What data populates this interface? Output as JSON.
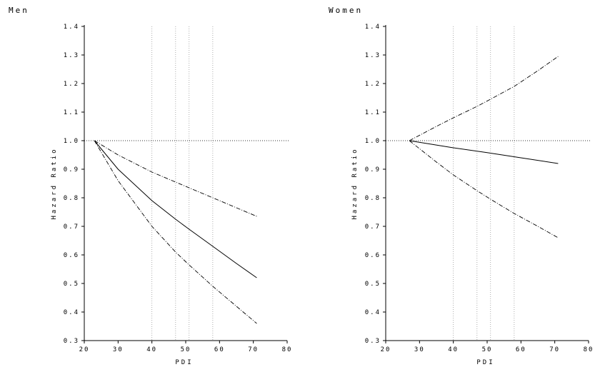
{
  "chart_data": [
    {
      "type": "line",
      "title": "Men",
      "xlabel": "PDI",
      "ylabel": "Hazard Ratio",
      "xlim": [
        20,
        80
      ],
      "ylim": [
        0.3,
        1.4
      ],
      "x_ticks": [
        20,
        30,
        40,
        50,
        60,
        70,
        80
      ],
      "y_ticks": [
        0.3,
        0.4,
        0.5,
        0.6,
        0.7,
        0.8,
        0.9,
        1.0,
        1.1,
        1.2,
        1.3,
        1.4
      ],
      "y_tick_labels": [
        "0.3",
        "0.4",
        "0.5",
        "0.6",
        "0.7",
        "0.8",
        "0.9",
        "1.0",
        "1.1",
        "1.2",
        "1.3",
        "1.4"
      ],
      "reference_line_y": 1.0,
      "vertical_gridlines_x": [
        40,
        47,
        51,
        58
      ],
      "series": [
        {
          "style": "solid",
          "x": [
            23,
            30,
            40,
            47,
            51,
            58,
            65,
            71
          ],
          "values": [
            1.0,
            0.9,
            0.79,
            0.725,
            0.69,
            0.63,
            0.57,
            0.52
          ]
        },
        {
          "style": "dashdot",
          "x": [
            23,
            30,
            40,
            47,
            51,
            58,
            65,
            71
          ],
          "values": [
            1.0,
            0.95,
            0.89,
            0.855,
            0.835,
            0.8,
            0.765,
            0.735
          ]
        },
        {
          "style": "dashdot",
          "x": [
            23,
            30,
            40,
            47,
            51,
            58,
            65,
            71
          ],
          "values": [
            1.0,
            0.86,
            0.7,
            0.61,
            0.565,
            0.49,
            0.42,
            0.36
          ]
        }
      ]
    },
    {
      "type": "line",
      "title": "Women",
      "xlabel": "PDI",
      "ylabel": "Hazard Ratio",
      "xlim": [
        20,
        80
      ],
      "ylim": [
        0.3,
        1.4
      ],
      "x_ticks": [
        20,
        30,
        40,
        50,
        60,
        70,
        80
      ],
      "y_ticks": [
        0.3,
        0.4,
        0.5,
        0.6,
        0.7,
        0.8,
        0.9,
        1.0,
        1.1,
        1.2,
        1.3,
        1.4
      ],
      "y_tick_labels": [
        "0.3",
        "0.4",
        "0.5",
        "0.6",
        "0.7",
        "0.8",
        "0.9",
        "1.0",
        "1.1",
        "1.2",
        "1.3",
        "1.4"
      ],
      "reference_line_y": 1.0,
      "vertical_gridlines_x": [
        40,
        47,
        51,
        58
      ],
      "series": [
        {
          "style": "solid",
          "x": [
            27,
            40,
            50,
            60,
            71
          ],
          "values": [
            1.0,
            0.975,
            0.958,
            0.94,
            0.92
          ]
        },
        {
          "style": "dashdot",
          "x": [
            27,
            35,
            40,
            47,
            51,
            58,
            65,
            71
          ],
          "values": [
            1.0,
            1.05,
            1.08,
            1.12,
            1.145,
            1.19,
            1.245,
            1.295
          ]
        },
        {
          "style": "dashdot",
          "x": [
            27,
            35,
            40,
            47,
            51,
            58,
            65,
            71
          ],
          "values": [
            1.0,
            0.925,
            0.88,
            0.825,
            0.795,
            0.745,
            0.7,
            0.66
          ]
        }
      ]
    }
  ]
}
